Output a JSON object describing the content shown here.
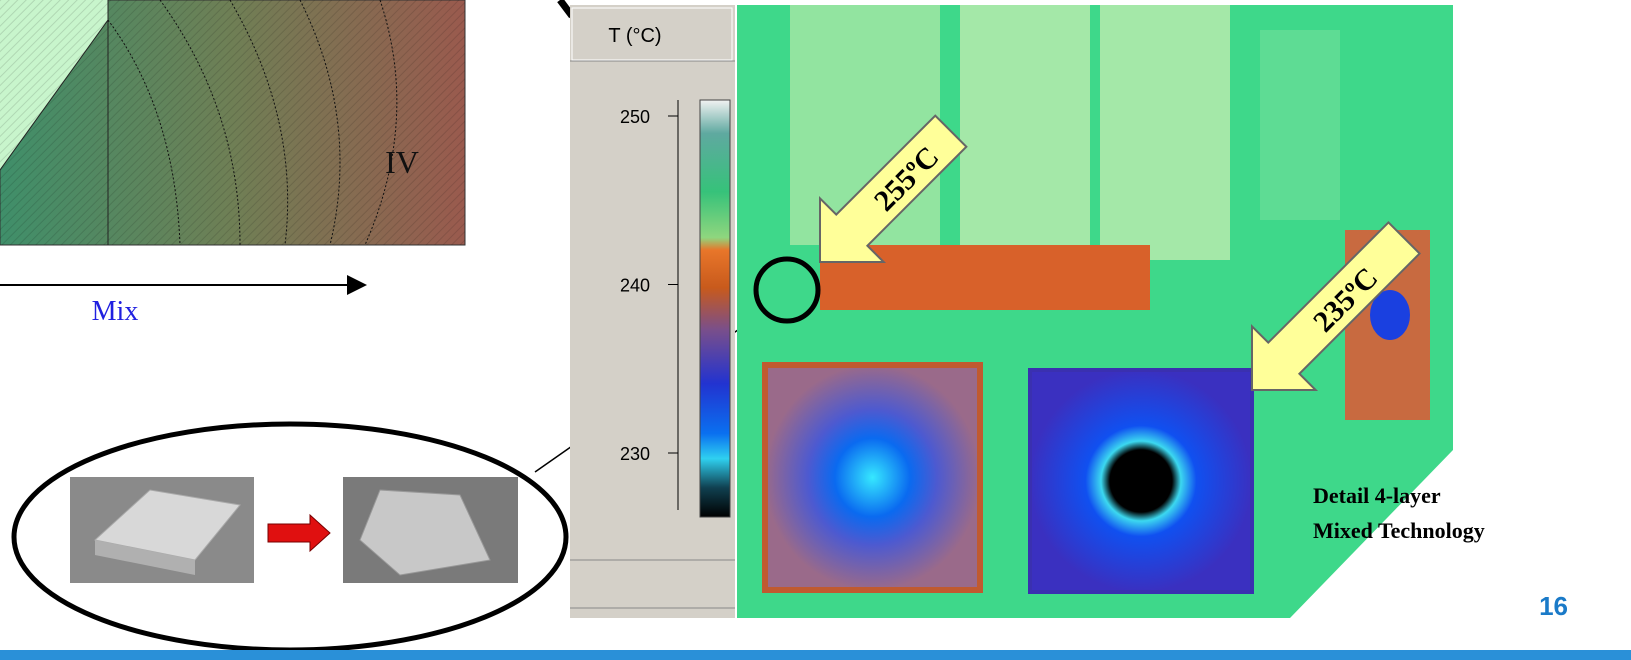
{
  "diagram": {
    "region_label": "IV",
    "axis_label": "Mix"
  },
  "thermal": {
    "scale_title": "T (°C)",
    "scale_ticks": [
      250,
      240,
      230
    ],
    "hotspots": [
      {
        "label": "255ºC"
      },
      {
        "label": "235ºC"
      }
    ],
    "caption": [
      "Detail 4-layer",
      "Mixed Technology"
    ]
  },
  "page_number": "16"
}
